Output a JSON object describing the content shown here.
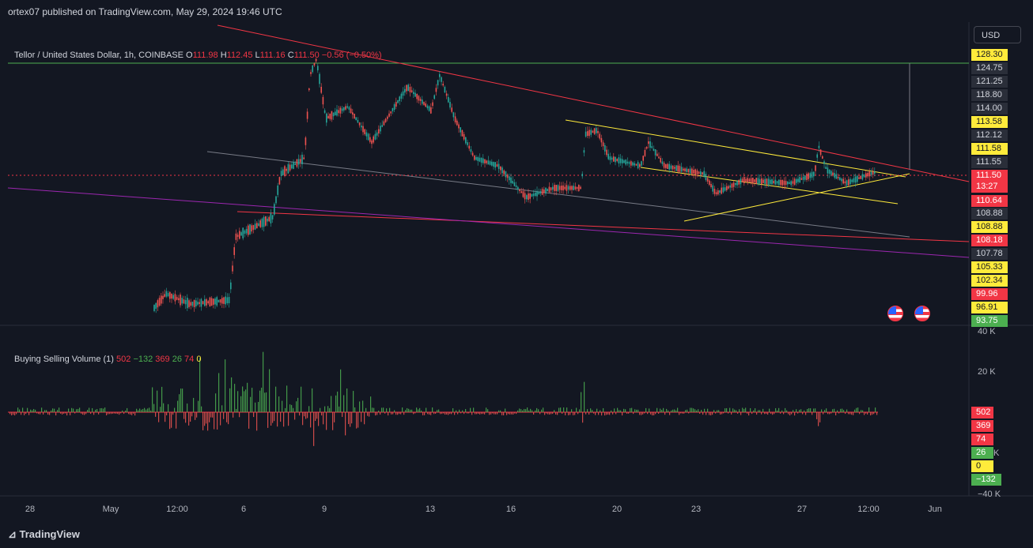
{
  "header": {
    "published_text": "ortex07 published on TradingView.com, May 29, 2024 19:46 UTC"
  },
  "legend": {
    "symbol": "Tellor / United States Dollar, 1h, COINBASE",
    "o_label": "O",
    "o": "111.98",
    "h_label": "H",
    "h": "112.45",
    "l_label": "L",
    "l": "111.16",
    "c_label": "C",
    "c": "111.50",
    "change": "−0.56 (−0.50%)"
  },
  "volume_legend": {
    "title": "Buying Selling Volume (1)",
    "v1": "502",
    "v2": "−132",
    "v3": "369",
    "v4": "26",
    "v5": "74",
    "v6": "0"
  },
  "currency_button": "USD",
  "price_tags": [
    {
      "text": "128.30",
      "bg": "#ffeb3b",
      "fg": "#131722"
    },
    {
      "text": "124.75",
      "bg": "#2a2e39",
      "fg": "#d1d4dc"
    },
    {
      "text": "121.25",
      "bg": "#2a2e39",
      "fg": "#d1d4dc"
    },
    {
      "text": "118.80",
      "bg": "#2a2e39",
      "fg": "#d1d4dc"
    },
    {
      "text": "114.00",
      "bg": "#2a2e39",
      "fg": "#d1d4dc"
    },
    {
      "text": "113.58",
      "bg": "#ffeb3b",
      "fg": "#131722"
    },
    {
      "text": "112.12",
      "bg": "#2a2e39",
      "fg": "#d1d4dc"
    },
    {
      "text": "111.58",
      "bg": "#ffeb3b",
      "fg": "#131722"
    },
    {
      "text": "111.55",
      "bg": "#2a2e39",
      "fg": "#d1d4dc"
    },
    {
      "text": "111.50",
      "bg": "#f23645",
      "fg": "#ffffff"
    },
    {
      "text": "13:27",
      "bg": "#f23645",
      "fg": "#ffffff"
    },
    {
      "text": "110.64",
      "bg": "#f23645",
      "fg": "#ffffff"
    },
    {
      "text": "108.88",
      "bg": "#2a2e39",
      "fg": "#d1d4dc"
    },
    {
      "text": "108.88",
      "bg": "#ffeb3b",
      "fg": "#131722"
    },
    {
      "text": "108.18",
      "bg": "#f23645",
      "fg": "#ffffff"
    },
    {
      "text": "107.78",
      "bg": "#2a2e39",
      "fg": "#d1d4dc"
    },
    {
      "text": "105.33",
      "bg": "#ffeb3b",
      "fg": "#131722"
    },
    {
      "text": "102.34",
      "bg": "#ffeb3b",
      "fg": "#131722"
    },
    {
      "text": "99.96",
      "bg": "#f23645",
      "fg": "#ffffff"
    },
    {
      "text": "96.91",
      "bg": "#ffeb3b",
      "fg": "#131722"
    },
    {
      "text": "93.75",
      "bg": "#4caf50",
      "fg": "#ffffff"
    }
  ],
  "volume_axis": [
    "40 K",
    "20 K",
    "K",
    "−40 K"
  ],
  "volume_tags": [
    {
      "text": "502",
      "bg": "#f23645",
      "fg": "#ffffff"
    },
    {
      "text": "369",
      "bg": "#f23645",
      "fg": "#ffffff"
    },
    {
      "text": "74",
      "bg": "#f23645",
      "fg": "#ffffff"
    },
    {
      "text": "26",
      "bg": "#4caf50",
      "fg": "#ffffff"
    },
    {
      "text": "0",
      "bg": "#ffeb3b",
      "fg": "#131722"
    },
    {
      "text": "−132",
      "bg": "#4caf50",
      "fg": "#ffffff"
    }
  ],
  "time_axis": [
    "28",
    "May",
    "12:00",
    "6",
    "9",
    "13",
    "16",
    "20",
    "23",
    "27",
    "12:00",
    "Jun"
  ],
  "footer": {
    "logo_text": "TradingView"
  },
  "colors": {
    "background": "#131722",
    "up": "#26a69a",
    "down": "#ef5350",
    "trendline_red": "#f23645",
    "trendline_yellow": "#ffeb3b",
    "trendline_gray": "#787b86",
    "trendline_purple": "#9c27b0",
    "horizontal_green": "#4caf50"
  }
}
